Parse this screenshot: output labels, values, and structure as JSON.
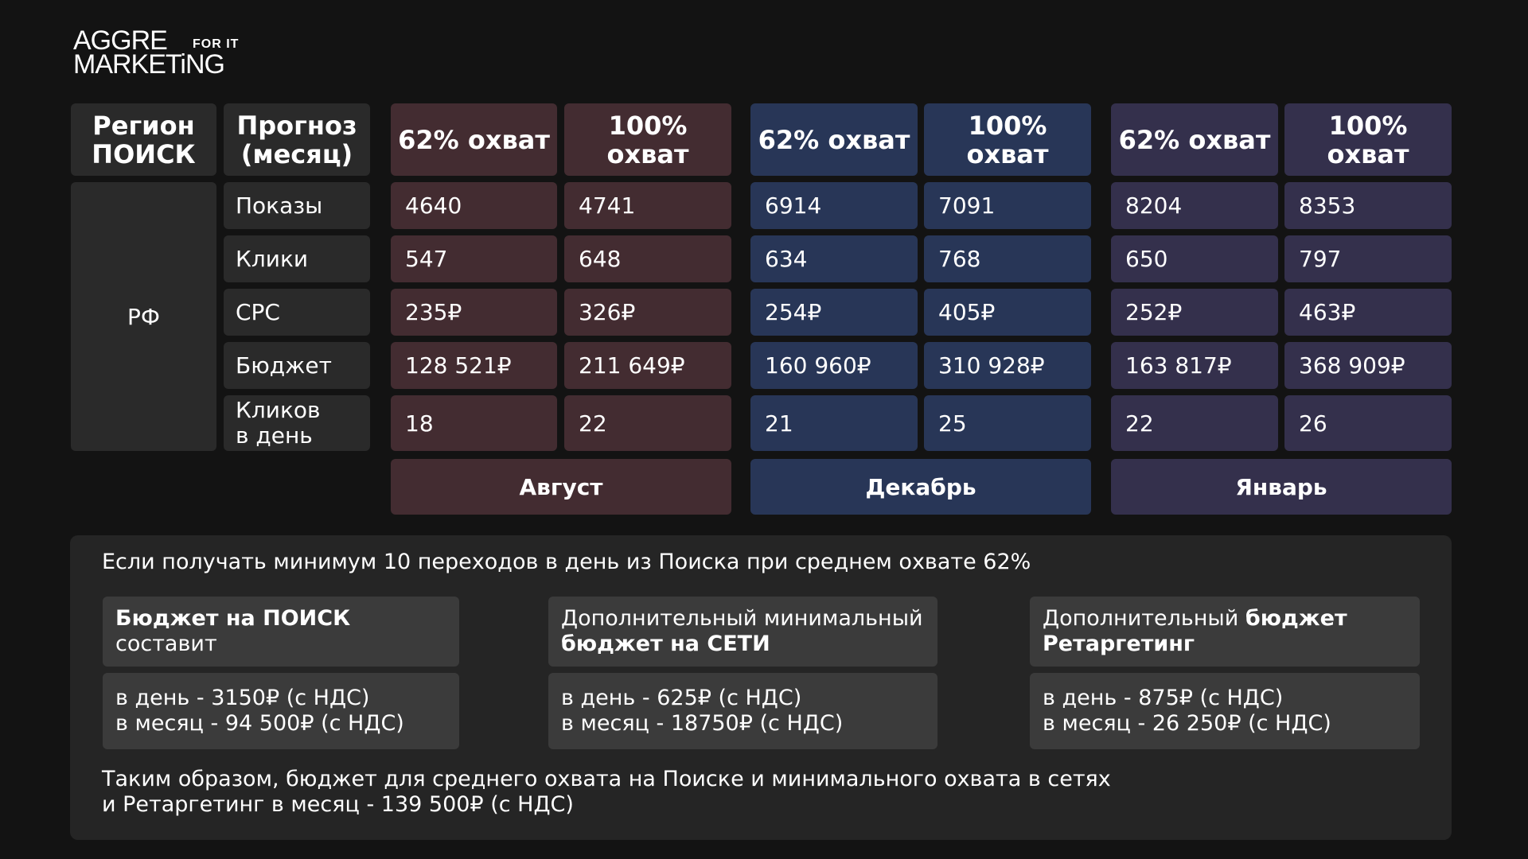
{
  "logo": {
    "line1": "AGGRE",
    "line2": "MARKETiNG",
    "small": "FOR IT"
  },
  "header": {
    "region_title": [
      "Регион",
      "ПОИСК"
    ],
    "forecast_title": [
      "Прогноз",
      "(месяц)"
    ],
    "col_labels": [
      "62% охват",
      "100% охват",
      "62% охват",
      "100% охват",
      "62% охват",
      "100% охват"
    ]
  },
  "region_value": "РФ",
  "row_labels": [
    "Показы",
    "Клики",
    "CPC",
    "Бюджет",
    [
      "Кликов",
      "в день"
    ]
  ],
  "values": [
    [
      "4640",
      "4741",
      "6914",
      "7091",
      "8204",
      "8353"
    ],
    [
      "547",
      "648",
      "634",
      "768",
      "650",
      "797"
    ],
    [
      "235₽",
      "326₽",
      "254₽",
      "405₽",
      "252₽",
      "463₽"
    ],
    [
      "128 521₽",
      "211 649₽",
      "160 960₽",
      "310 928₽",
      "163 817₽",
      "368 909₽"
    ],
    [
      "18",
      "22",
      "21",
      "25",
      "22",
      "26"
    ]
  ],
  "months": [
    "Август",
    "Декабрь",
    "Январь"
  ],
  "colors": {
    "august": "#432c31",
    "december": "#283657",
    "january": "#34304c",
    "gray": "#2a2a2a",
    "panel": "#252525",
    "box": "#3b3b3b"
  },
  "summary": {
    "intro": "Если получать минимум 10 переходов в день из Поиска при среднем охвате 62%",
    "search": {
      "title_bold": "Бюджет на ПОИСК",
      "title_rest": " составит",
      "day": "в день - 3150₽ (с НДС)",
      "month": "в месяц - 94 500₽ (с НДС)"
    },
    "networks": {
      "title_line1": "Дополнительный минимальный",
      "title_line2_bold": "бюджет на СЕТИ",
      "day": "в день - 625₽ (с НДС)",
      "month": "в месяц - 18750₽ (с НДС)"
    },
    "retargeting": {
      "title_line1_plain": "Дополнительный ",
      "title_line1_bold": "бюджет",
      "title_line2_bold": "Ретаргетинг",
      "day": "в день - 875₽ (с НДС)",
      "month": "в месяц - 26 250₽ (с НДС)"
    },
    "outro_line1": "Таким образом, бюджет для среднего охвата на Поиске и минимального охвата в сетях",
    "outro_line2": "и Ретаргетинг в месяц - 139 500₽ (с НДС)"
  }
}
